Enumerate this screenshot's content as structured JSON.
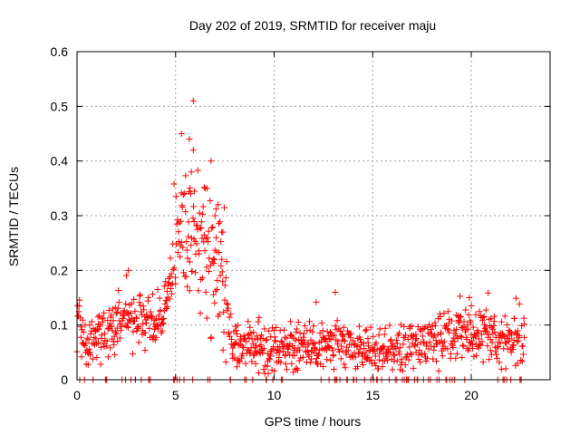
{
  "chart_data": {
    "type": "scatter",
    "title": "Day 202 of 2019, SRMTID for receiver maju",
    "xlabel": "GPS time / hours",
    "ylabel": "SRMTID / TECUs",
    "xlim": [
      0,
      24
    ],
    "ylim": [
      0,
      0.6
    ],
    "x_ticks": [
      0,
      5,
      10,
      15,
      20
    ],
    "x_tick_labels": [
      "0",
      "5",
      "10",
      "15",
      "20"
    ],
    "y_ticks": [
      0,
      0.1,
      0.2,
      0.3,
      0.4,
      0.5,
      0.6
    ],
    "y_tick_labels": [
      "0",
      "0.1",
      "0.2",
      "0.3",
      "0.4",
      "0.5",
      "0.6"
    ],
    "grid": true,
    "marker": "+",
    "colors": {
      "series": "#ff0000",
      "axis": "#000000",
      "grid": "#a0a0a0"
    },
    "series": [
      {
        "name": "SRMTID",
        "profile": [
          {
            "x": 0.0,
            "y": 0.11
          },
          {
            "x": 0.3,
            "y": 0.07
          },
          {
            "x": 0.6,
            "y": 0.06
          },
          {
            "x": 1.0,
            "y": 0.09
          },
          {
            "x": 1.5,
            "y": 0.08
          },
          {
            "x": 2.0,
            "y": 0.1
          },
          {
            "x": 2.5,
            "y": 0.12
          },
          {
            "x": 3.0,
            "y": 0.1
          },
          {
            "x": 3.5,
            "y": 0.11
          },
          {
            "x": 4.0,
            "y": 0.11
          },
          {
            "x": 4.5,
            "y": 0.14
          },
          {
            "x": 5.0,
            "y": 0.22
          },
          {
            "x": 5.3,
            "y": 0.28
          },
          {
            "x": 5.6,
            "y": 0.26
          },
          {
            "x": 6.0,
            "y": 0.25
          },
          {
            "x": 6.5,
            "y": 0.24
          },
          {
            "x": 7.0,
            "y": 0.22
          },
          {
            "x": 7.4,
            "y": 0.18
          },
          {
            "x": 7.7,
            "y": 0.1
          },
          {
            "x": 8.0,
            "y": 0.06
          },
          {
            "x": 9.0,
            "y": 0.05
          },
          {
            "x": 10.0,
            "y": 0.06
          },
          {
            "x": 11.0,
            "y": 0.06
          },
          {
            "x": 12.0,
            "y": 0.06
          },
          {
            "x": 13.0,
            "y": 0.07
          },
          {
            "x": 14.0,
            "y": 0.06
          },
          {
            "x": 15.0,
            "y": 0.06
          },
          {
            "x": 16.0,
            "y": 0.05
          },
          {
            "x": 17.0,
            "y": 0.06
          },
          {
            "x": 18.0,
            "y": 0.07
          },
          {
            "x": 19.0,
            "y": 0.07
          },
          {
            "x": 20.0,
            "y": 0.08
          },
          {
            "x": 20.7,
            "y": 0.09
          },
          {
            "x": 21.5,
            "y": 0.07
          },
          {
            "x": 22.0,
            "y": 0.07
          },
          {
            "x": 22.6,
            "y": 0.07
          }
        ],
        "notable_points": [
          {
            "x": 5.9,
            "y": 0.51
          },
          {
            "x": 5.3,
            "y": 0.45
          },
          {
            "x": 5.7,
            "y": 0.44
          },
          {
            "x": 5.9,
            "y": 0.42
          },
          {
            "x": 6.8,
            "y": 0.4
          },
          {
            "x": 5.8,
            "y": 0.38
          },
          {
            "x": 6.6,
            "y": 0.35
          },
          {
            "x": 7.0,
            "y": 0.3
          },
          {
            "x": 7.4,
            "y": 0.27
          },
          {
            "x": 2.6,
            "y": 0.2
          },
          {
            "x": 13.1,
            "y": 0.16
          },
          {
            "x": 19.9,
            "y": 0.15
          }
        ],
        "x_range": [
          0.0,
          22.7
        ],
        "point_count": 1100
      }
    ]
  }
}
